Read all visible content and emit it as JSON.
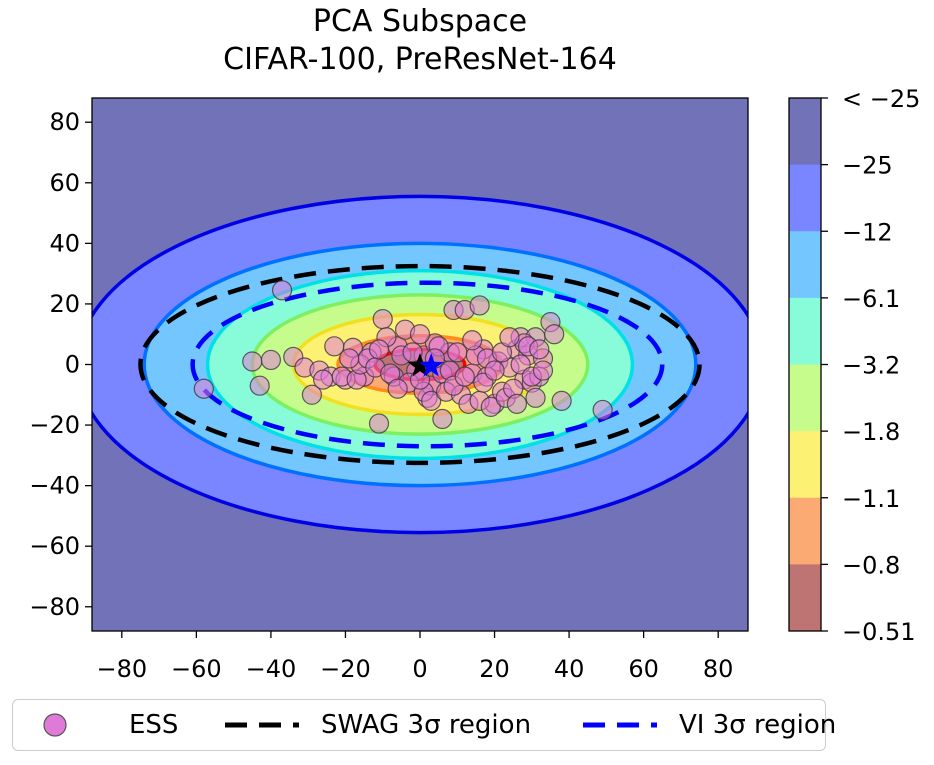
{
  "chart_data": {
    "type": "contour",
    "title": [
      "PCA Subspace",
      "CIFAR-100, PreResNet-164"
    ],
    "xlim": [
      -88,
      88
    ],
    "ylim": [
      -88,
      88
    ],
    "xticks": [
      -80,
      -60,
      -40,
      -20,
      0,
      20,
      40,
      60,
      80
    ],
    "yticks": [
      -80,
      -60,
      -40,
      -20,
      0,
      20,
      40,
      60,
      80
    ],
    "xtick_labels": [
      "−80",
      "−60",
      "−40",
      "−20",
      "0",
      "20",
      "40",
      "60",
      "80"
    ],
    "ytick_labels": [
      "−80",
      "−60",
      "−40",
      "−20",
      "0",
      "20",
      "40",
      "60",
      "80"
    ],
    "colorbar": {
      "labels": [
        "< −25",
        "−25",
        "−12",
        "−6.1",
        "−3.2",
        "−1.8",
        "−1.1",
        "−0.8",
        "−0.51"
      ],
      "colors": [
        "#7272b8",
        "#7a86ff",
        "#74c6fe",
        "#88fbd9",
        "#c6fc8c",
        "#fdf173",
        "#fcaa74",
        "#bd7472"
      ]
    },
    "contour_levels": [
      {
        "a": 92,
        "b": 55.5
      },
      {
        "a": 74,
        "b": 40
      },
      {
        "a": 57,
        "b": 31
      },
      {
        "a": 45,
        "b": 23
      },
      {
        "a": 34,
        "b": 16.5
      },
      {
        "a": 22,
        "b": 9.5
      },
      {
        "a": 12,
        "b": 5
      }
    ],
    "swag_region": {
      "rx": 75,
      "ry": 32.5,
      "label": "SWAG 3σ region",
      "color": "#000000"
    },
    "vi_region": {
      "cx": 2,
      "rx": 63,
      "ry": 27,
      "label": "VI 3σ region",
      "color": "#0000ff"
    },
    "ess_label": "ESS",
    "ess_color": "#e07ad8",
    "swag_mean": [
      0,
      -0.5
    ],
    "vi_mean": [
      3,
      -0.5
    ],
    "ess_points": [
      [
        -37,
        24.5
      ],
      [
        -58,
        -8
      ],
      [
        -43,
        -7
      ],
      [
        -45,
        1
      ],
      [
        -40,
        1.5
      ],
      [
        -34,
        2.5
      ],
      [
        -31,
        -1
      ],
      [
        -29,
        -10
      ],
      [
        -27,
        -2
      ],
      [
        -24,
        -4
      ],
      [
        -20,
        -5
      ],
      [
        -18,
        5.5
      ],
      [
        -15,
        -4
      ],
      [
        -13,
        4
      ],
      [
        -11,
        -19.5
      ],
      [
        -10,
        15
      ],
      [
        -7,
        -4
      ],
      [
        -6,
        6
      ],
      [
        -4,
        11.5
      ],
      [
        -1,
        -2
      ],
      [
        1,
        3
      ],
      [
        2,
        -11
      ],
      [
        3,
        -7
      ],
      [
        4,
        7
      ],
      [
        6,
        -18
      ],
      [
        6,
        -3
      ],
      [
        8,
        4
      ],
      [
        9,
        18
      ],
      [
        12,
        18
      ],
      [
        14,
        -3
      ],
      [
        16,
        19.5
      ],
      [
        17,
        5
      ],
      [
        18,
        -4
      ],
      [
        20,
        -13
      ],
      [
        21,
        1
      ],
      [
        22,
        -9
      ],
      [
        24,
        -1
      ],
      [
        26,
        5
      ],
      [
        27,
        9
      ],
      [
        28,
        -5
      ],
      [
        29,
        3
      ],
      [
        30,
        -6
      ],
      [
        31,
        9
      ],
      [
        32,
        -4
      ],
      [
        33,
        2
      ],
      [
        35,
        14
      ],
      [
        36,
        10
      ],
      [
        38,
        -12
      ],
      [
        49,
        -15
      ],
      [
        -23,
        6
      ],
      [
        -21,
        -4
      ],
      [
        -17,
        -5
      ],
      [
        -16,
        0
      ],
      [
        -14,
        2
      ],
      [
        -12,
        -1
      ],
      [
        -9,
        9
      ],
      [
        -8,
        -3
      ],
      [
        -5,
        3
      ],
      [
        -3,
        -6
      ],
      [
        -2,
        4
      ],
      [
        0,
        10
      ],
      [
        1,
        -9
      ],
      [
        3,
        -12
      ],
      [
        5,
        6
      ],
      [
        7,
        -9
      ],
      [
        8,
        -2
      ],
      [
        10,
        4
      ],
      [
        11,
        -10
      ],
      [
        13,
        -13
      ],
      [
        15,
        3
      ],
      [
        16,
        -12
      ],
      [
        18,
        2
      ],
      [
        19,
        -14
      ],
      [
        22,
        4
      ],
      [
        23,
        -11
      ],
      [
        25,
        -8
      ],
      [
        27,
        0
      ],
      [
        28,
        7
      ],
      [
        30,
        -4
      ],
      [
        31,
        -11
      ],
      [
        33,
        -2
      ],
      [
        -26,
        -5
      ],
      [
        -19,
        2
      ],
      [
        -11,
        5
      ],
      [
        -6,
        -8
      ],
      [
        0,
        -5
      ],
      [
        4,
        2
      ],
      [
        9,
        -7
      ],
      [
        12,
        -4
      ],
      [
        14,
        8
      ],
      [
        17,
        -6
      ],
      [
        20,
        -2
      ],
      [
        24,
        9
      ],
      [
        26,
        -13
      ],
      [
        29,
        6
      ],
      [
        32,
        5
      ]
    ]
  }
}
